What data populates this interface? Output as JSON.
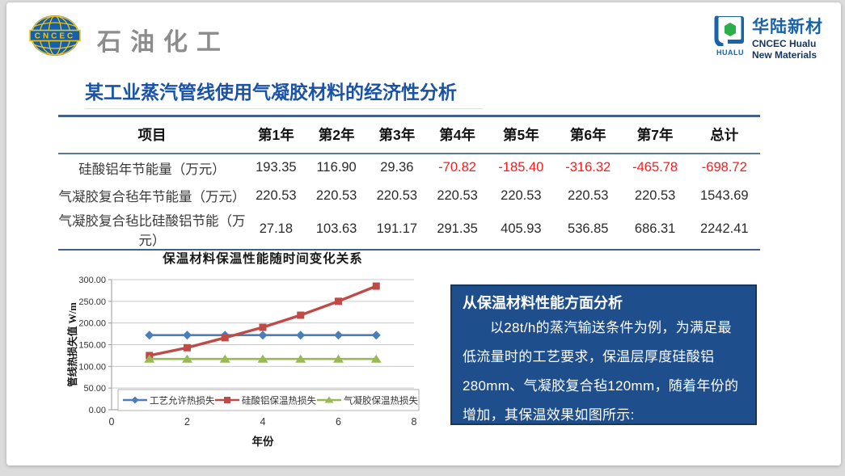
{
  "header": {
    "cncec_logo_text": "CNCEC",
    "brand_text": "石油化工",
    "hualu": {
      "icon_label": "HUALU",
      "name_cn": "华陆新材",
      "name_en_line1": "CNCEC Hualu",
      "name_en_line2": "New Materials"
    }
  },
  "title": "某工业蒸汽管线使用气凝胶材料的经济性分析",
  "table": {
    "headers": [
      "项目",
      "第1年",
      "第2年",
      "第3年",
      "第4年",
      "第5年",
      "第6年",
      "第7年",
      "总计"
    ],
    "rows": [
      {
        "label": "硅酸铝年节能量（万元）",
        "values": [
          "193.35",
          "116.90",
          "29.36",
          "-70.82",
          "-185.40",
          "-316.32",
          "-465.78",
          "-698.72"
        ]
      },
      {
        "label": "气凝胶复合毡年节能量（万元）",
        "values": [
          "220.53",
          "220.53",
          "220.53",
          "220.53",
          "220.53",
          "220.53",
          "220.53",
          "1543.69"
        ]
      },
      {
        "label": "气凝胶复合毡比硅酸铝节能（万元）",
        "values": [
          "27.18",
          "103.63",
          "191.17",
          "291.35",
          "405.93",
          "536.85",
          "686.31",
          "2242.41"
        ]
      }
    ],
    "negative_color": "#ff1a1a"
  },
  "chart_data": {
    "type": "line",
    "title": "保温材料保温性能随时间变化关系",
    "xlabel": "年份",
    "ylabel": "管线热损失值 W/m",
    "xlim": [
      0,
      8
    ],
    "ylim": [
      0,
      300
    ],
    "x_ticks": [
      "0",
      "2",
      "4",
      "6",
      "8"
    ],
    "y_ticks": [
      "0.00",
      "50.00",
      "100.00",
      "150.00",
      "200.00",
      "250.00",
      "300.00"
    ],
    "grid": true,
    "legend_position": "bottom-inside",
    "x": [
      1,
      2,
      3,
      4,
      5,
      6,
      7
    ],
    "series": [
      {
        "name": "工艺允许热损失",
        "color": "#4a7ebb",
        "marker": "diamond",
        "values": [
          172,
          172,
          172,
          172,
          172,
          172,
          172
        ]
      },
      {
        "name": "硅酸铝保温热损失",
        "color": "#be4b48",
        "marker": "square",
        "values": [
          125,
          143,
          166,
          190,
          218,
          250,
          285
        ]
      },
      {
        "name": "气凝胶保温热损失",
        "color": "#98b954",
        "marker": "triangle",
        "values": [
          117,
          117,
          117,
          117,
          117,
          117,
          117
        ]
      }
    ]
  },
  "analysis_box": {
    "heading": "从保温材料性能方面分析",
    "body": "以28t/h的蒸汽输送条件为例，为满足最低流量时的工艺要求，保温层厚度硅酸铝280mm、气凝胶复合毡120mm，随着年份的增加，其保温效果如图所示:",
    "bg_color": "#1f4e8c",
    "border_color": "#16375e"
  }
}
